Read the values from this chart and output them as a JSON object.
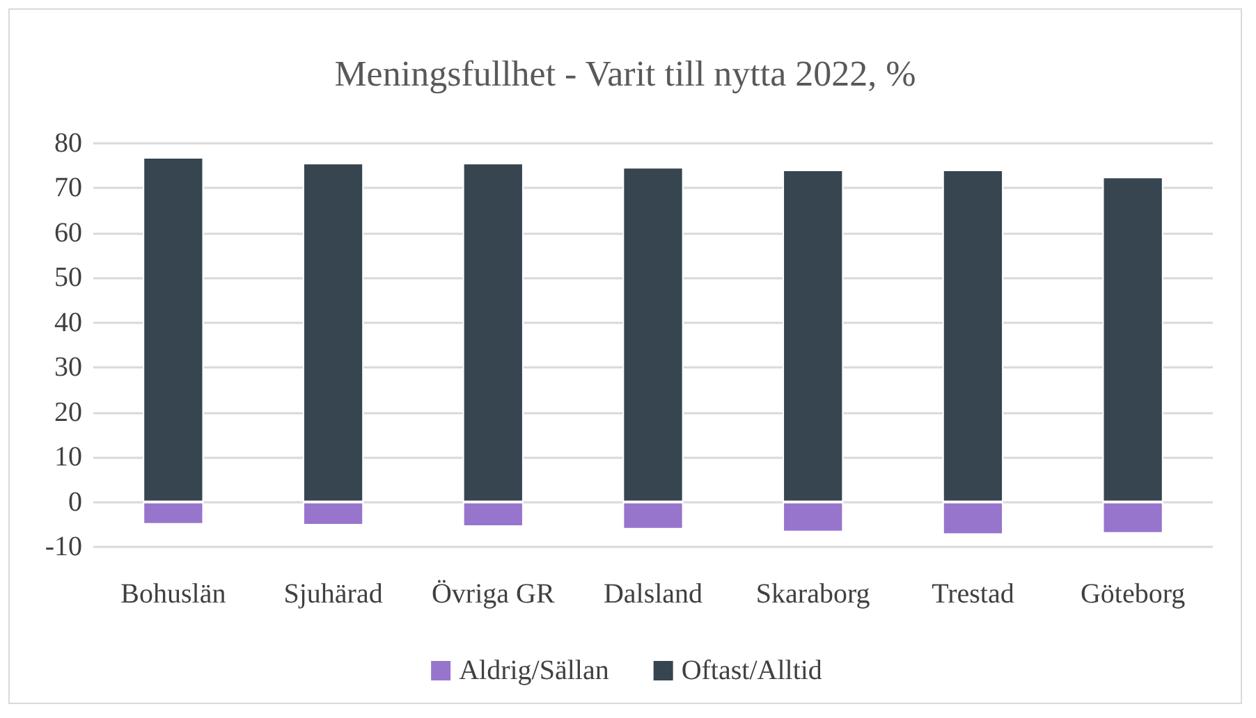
{
  "chart_data": {
    "type": "bar",
    "title": "Meningsfullhet - Varit till nytta 2022, %",
    "categories": [
      "Bohuslän",
      "Sjuhärad",
      "Övriga GR",
      "Dalsland",
      "Skaraborg",
      "Trestad",
      "Göteborg"
    ],
    "series": [
      {
        "name": "Aldrig/Sällan",
        "color": "#9775cd",
        "values": [
          -5.0,
          -5.2,
          -5.5,
          -6.1,
          -6.7,
          -7.3,
          -7.0
        ]
      },
      {
        "name": "Oftast/Alltid",
        "color": "#36454f",
        "values": [
          76.9,
          75.6,
          75.6,
          74.7,
          74.1,
          74.1,
          72.5
        ]
      }
    ],
    "stacked": true,
    "ylim": [
      -10,
      80
    ],
    "yticks": [
      -10,
      {
        "value": 0,
        "label": "0"
      },
      10,
      20,
      30,
      40,
      50,
      60,
      70,
      80
    ],
    "grid": "y",
    "legend": "bottom"
  }
}
